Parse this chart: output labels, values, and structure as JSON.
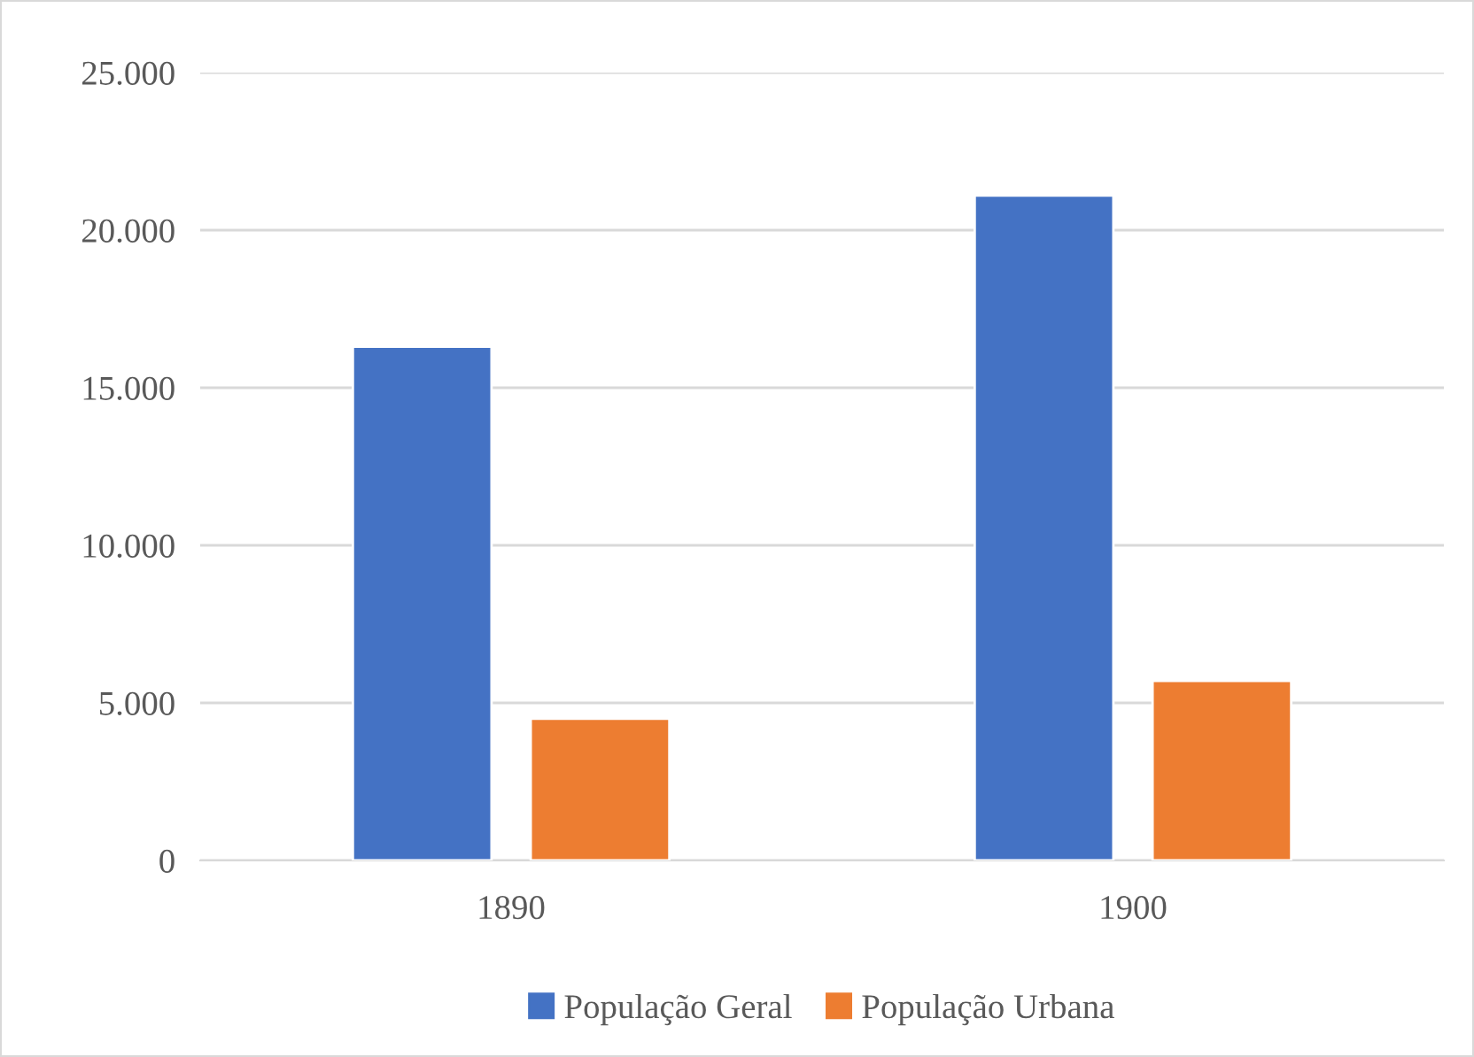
{
  "chart_data": {
    "type": "bar",
    "categories": [
      "1890",
      "1900"
    ],
    "series": [
      {
        "name": "População Geral",
        "color": "#4472c4",
        "values": [
          16300,
          21100
        ]
      },
      {
        "name": "População Urbana",
        "color": "#ed7d31",
        "values": [
          4500,
          5700
        ]
      }
    ],
    "ylim": [
      0,
      25000
    ],
    "yticks": [
      {
        "value": 0,
        "label": "0"
      },
      {
        "value": 5000,
        "label": "5.000"
      },
      {
        "value": 10000,
        "label": "10.000"
      },
      {
        "value": 15000,
        "label": "15.000"
      },
      {
        "value": 20000,
        "label": "20.000"
      },
      {
        "value": 25000,
        "label": "25.000"
      }
    ],
    "grid": "y",
    "legend": "bottom"
  }
}
